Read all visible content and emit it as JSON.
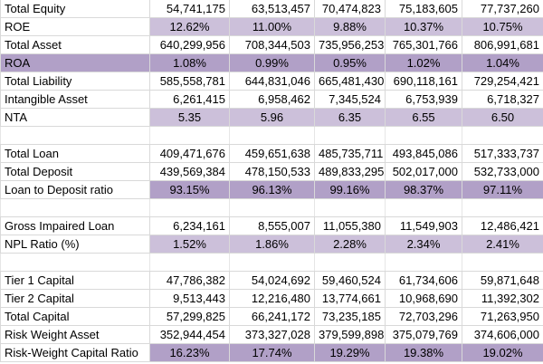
{
  "sections": [
    {
      "rows": [
        {
          "label": "Total Equity",
          "values": [
            "54,741,175",
            "63,513,457",
            "70,474,823",
            "75,183,605",
            "77,737,260"
          ]
        },
        {
          "label": "ROE",
          "values": [
            "12.62%",
            "11.00%",
            "9.88%",
            "10.37%",
            "10.75%"
          ],
          "shade": "#ccc0da"
        },
        {
          "label": "Total Asset",
          "values": [
            "640,299,956",
            "708,344,503",
            "735,956,253",
            "765,301,766",
            "806,991,681"
          ]
        },
        {
          "label": "ROA",
          "values": [
            "1.08%",
            "0.99%",
            "0.95%",
            "1.02%",
            "1.04%"
          ],
          "shade": "#b1a0c7",
          "label_shade": "#b1a0c7"
        },
        {
          "label": "Total Liability",
          "values": [
            "585,558,781",
            "644,831,046",
            "665,481,430",
            "690,118,161",
            "729,254,421"
          ]
        },
        {
          "label": "Intangible Asset",
          "values": [
            "6,261,415",
            "6,958,462",
            "7,345,524",
            "6,753,939",
            "6,718,327"
          ]
        },
        {
          "label": "NTA",
          "values": [
            "5.35",
            "5.96",
            "6.35",
            "6.55",
            "6.50"
          ],
          "shade": "#ccc0da"
        }
      ]
    },
    {
      "rows": [
        {
          "label": "Total Loan",
          "values": [
            "409,471,676",
            "459,651,638",
            "485,735,711",
            "493,845,086",
            "517,333,737"
          ]
        },
        {
          "label": "Total Deposit",
          "values": [
            "439,569,384",
            "478,150,533",
            "489,833,295",
            "502,017,000",
            "532,733,000"
          ]
        },
        {
          "label": "Loan to Deposit ratio",
          "values": [
            "93.15%",
            "96.13%",
            "99.16%",
            "98.37%",
            "97.11%"
          ],
          "shade": "#b1a0c7"
        }
      ]
    },
    {
      "rows": [
        {
          "label": "Gross Impaired Loan",
          "values": [
            "6,234,161",
            "8,555,007",
            "11,055,380",
            "11,549,903",
            "12,486,421"
          ]
        },
        {
          "label": "NPL Ratio (%)",
          "values": [
            "1.52%",
            "1.86%",
            "2.28%",
            "2.34%",
            "2.41%"
          ],
          "shade": "#ccc0da"
        }
      ]
    },
    {
      "rows": [
        {
          "label": "Tier 1 Capital",
          "values": [
            "47,786,382",
            "54,024,692",
            "59,460,524",
            "61,734,606",
            "59,871,648"
          ]
        },
        {
          "label": "Tier 2 Capital",
          "values": [
            "9,513,443",
            "12,216,480",
            "13,774,661",
            "10,968,690",
            "11,392,302"
          ]
        },
        {
          "label": "Total Capital",
          "values": [
            "57,299,825",
            "66,241,172",
            "73,235,185",
            "72,703,296",
            "71,263,950"
          ]
        },
        {
          "label": "Risk Weight Asset",
          "values": [
            "352,944,454",
            "373,327,028",
            "379,599,898",
            "375,079,769",
            "374,606,000"
          ]
        },
        {
          "label": "Risk-Weight Capital Ratio",
          "values": [
            "16.23%",
            "17.74%",
            "19.29%",
            "19.38%",
            "19.02%"
          ],
          "shade": "#b1a0c7"
        }
      ]
    }
  ]
}
